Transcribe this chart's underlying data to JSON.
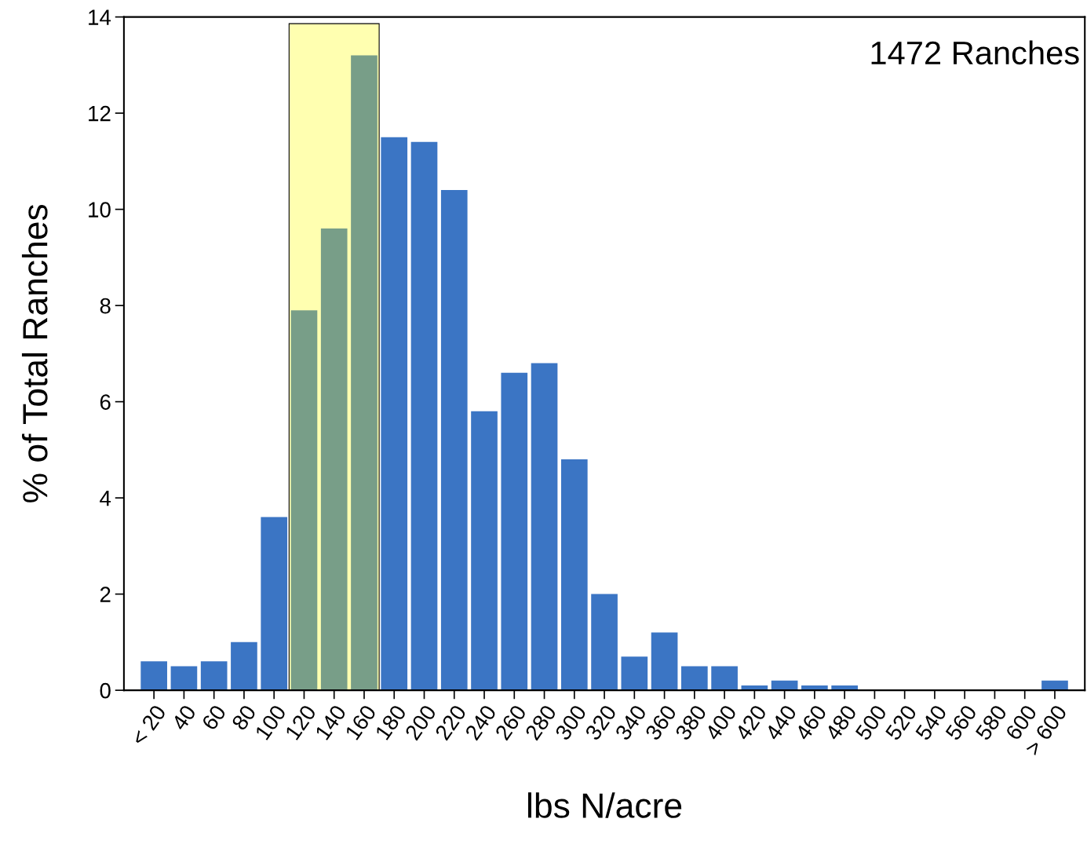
{
  "chart_data": {
    "type": "bar",
    "xlabel": "lbs N/acre",
    "ylabel": "% of Total Ranches",
    "categories": [
      "< 20",
      "40",
      "60",
      "80",
      "100",
      "120",
      "140",
      "160",
      "180",
      "200",
      "220",
      "240",
      "260",
      "280",
      "300",
      "320",
      "340",
      "360",
      "380",
      "400",
      "420",
      "440",
      "460",
      "480",
      "500",
      "520",
      "540",
      "560",
      "580",
      "600",
      "> 600"
    ],
    "values": [
      0.6,
      0.5,
      0.6,
      1.0,
      3.6,
      7.9,
      9.6,
      13.2,
      11.5,
      11.4,
      10.4,
      5.8,
      6.6,
      6.8,
      4.8,
      2.0,
      0.7,
      1.2,
      0.5,
      0.5,
      0.1,
      0.2,
      0.1,
      0.1,
      0,
      0,
      0,
      0,
      0,
      0,
      0.2
    ],
    "colors": [
      "#3b75c4",
      "#3b75c4",
      "#3b75c4",
      "#3b75c4",
      "#3b75c4",
      "#789e88",
      "#789e88",
      "#789e88",
      "#3b75c4",
      "#3b75c4",
      "#3b75c4",
      "#3b75c4",
      "#3b75c4",
      "#3b75c4",
      "#3b75c4",
      "#3b75c4",
      "#3b75c4",
      "#3b75c4",
      "#3b75c4",
      "#3b75c4",
      "#3b75c4",
      "#3b75c4",
      "#3b75c4",
      "#3b75c4",
      "#3b75c4",
      "#3b75c4",
      "#3b75c4",
      "#3b75c4",
      "#3b75c4",
      "#3b75c4",
      "#3b75c4"
    ],
    "bands": [
      {
        "axis": "x",
        "from": "120",
        "to": "160",
        "color": "#ffffb0"
      }
    ],
    "ylim": [
      0,
      14
    ],
    "yticks": [
      0,
      2,
      4,
      6,
      8,
      10,
      12,
      14
    ],
    "annotations": [
      "1472 Ranches"
    ],
    "grid": false,
    "legend": false
  }
}
